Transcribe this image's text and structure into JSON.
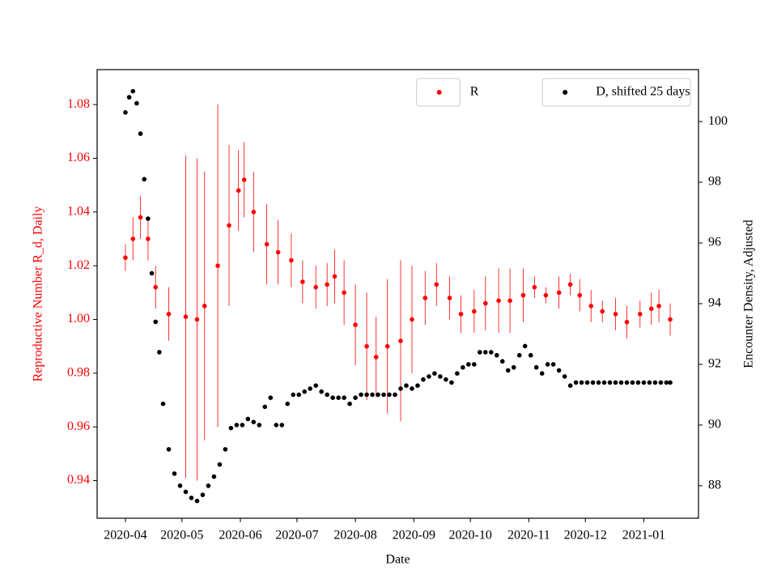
{
  "chart_data": {
    "type": "scatter",
    "x_label": "Date",
    "y_label": "Reproductive Number R_d, Daily",
    "y2_label": "Encounter Density, Adjusted",
    "y_color": "red",
    "xlim": [
      "2020-03-17",
      "2021-01-30"
    ],
    "xticks": [
      {
        "value": "2020-04-01",
        "label": "2020-04"
      },
      {
        "value": "2020-05-01",
        "label": "2020-05"
      },
      {
        "value": "2020-06-01",
        "label": "2020-06"
      },
      {
        "value": "2020-07-01",
        "label": "2020-07"
      },
      {
        "value": "2020-08-01",
        "label": "2020-08"
      },
      {
        "value": "2020-09-01",
        "label": "2020-09"
      },
      {
        "value": "2020-10-01",
        "label": "2020-10"
      },
      {
        "value": "2020-11-01",
        "label": "2020-11"
      },
      {
        "value": "2020-12-01",
        "label": "2020-12"
      },
      {
        "value": "2021-01-01",
        "label": "2021-01"
      }
    ],
    "ylim": [
      0.926,
      1.093
    ],
    "yticks": [
      0.94,
      0.96,
      0.98,
      {
        "value": 1,
        "label": "1.00"
      },
      1.02,
      1.04,
      1.06,
      1.08
    ],
    "y2lim": [
      86.93,
      101.71
    ],
    "y2ticks": [
      88,
      90,
      92,
      94,
      96,
      98,
      100
    ],
    "series": [
      {
        "name": "R",
        "color": "red",
        "legend": "upper center",
        "x": [
          "2020-04-01",
          "2020-04-05",
          "2020-04-09",
          "2020-04-13",
          "2020-04-17",
          "2020-04-24",
          "2020-05-03",
          "2020-05-09",
          "2020-05-13",
          "2020-05-20",
          "2020-05-26",
          "2020-05-31",
          "2020-06-03",
          "2020-06-08",
          "2020-06-15",
          "2020-06-21",
          "2020-06-28",
          "2020-07-04",
          "2020-07-11",
          "2020-07-17",
          "2020-07-21",
          "2020-07-26",
          "2020-08-01",
          "2020-08-07",
          "2020-08-12",
          "2020-08-18",
          "2020-08-25",
          "2020-08-31",
          "2020-09-07",
          "2020-09-13",
          "2020-09-20",
          "2020-09-26",
          "2020-10-03",
          "2020-10-09",
          "2020-10-16",
          "2020-10-22",
          "2020-10-29",
          "2020-11-04",
          "2020-11-10",
          "2020-11-17",
          "2020-11-23",
          "2020-11-28",
          "2020-12-04",
          "2020-12-10",
          "2020-12-17",
          "2020-12-23",
          "2020-12-30",
          "2021-01-05",
          "2021-01-09",
          "2021-01-15"
        ],
        "values": [
          1.023,
          1.03,
          1.038,
          1.03,
          1.012,
          1.002,
          1.001,
          1.0,
          1.005,
          1.02,
          1.035,
          1.048,
          1.052,
          1.04,
          1.028,
          1.025,
          1.022,
          1.014,
          1.012,
          1.013,
          1.016,
          1.01,
          0.998,
          0.99,
          0.986,
          0.99,
          0.992,
          1.0,
          1.008,
          1.013,
          1.008,
          1.002,
          1.003,
          1.006,
          1.007,
          1.007,
          1.009,
          1.012,
          1.009,
          1.01,
          1.013,
          1.009,
          1.005,
          1.003,
          1.002,
          0.999,
          1.002,
          1.004,
          1.005,
          1.0
        ],
        "errors": [
          0.005,
          0.008,
          0.008,
          0.008,
          0.008,
          0.01,
          0.06,
          0.06,
          0.05,
          0.06,
          0.03,
          0.015,
          0.014,
          0.015,
          0.015,
          0.012,
          0.01,
          0.008,
          0.008,
          0.008,
          0.01,
          0.012,
          0.015,
          0.02,
          0.015,
          0.025,
          0.03,
          0.02,
          0.01,
          0.008,
          0.008,
          0.007,
          0.008,
          0.01,
          0.012,
          0.012,
          0.01,
          0.004,
          0.003,
          0.006,
          0.004,
          0.006,
          0.006,
          0.004,
          0.006,
          0.006,
          0.005,
          0.006,
          0.006,
          0.006
        ]
      },
      {
        "name": "D, shifted 25 days",
        "color": "black",
        "axis": "y2",
        "legend": "upper right",
        "x": [
          "2020-04-01",
          "2020-04-03",
          "2020-04-05",
          "2020-04-07",
          "2020-04-09",
          "2020-04-11",
          "2020-04-13",
          "2020-04-15",
          "2020-04-17",
          "2020-04-19",
          "2020-04-21",
          "2020-04-24",
          "2020-04-27",
          "2020-04-30",
          "2020-05-03",
          "2020-05-06",
          "2020-05-09",
          "2020-05-12",
          "2020-05-15",
          "2020-05-18",
          "2020-05-21",
          "2020-05-24",
          "2020-05-27",
          "2020-05-30",
          "2020-06-02",
          "2020-06-05",
          "2020-06-08",
          "2020-06-11",
          "2020-06-14",
          "2020-06-17",
          "2020-06-20",
          "2020-06-23",
          "2020-06-26",
          "2020-06-29",
          "2020-07-02",
          "2020-07-05",
          "2020-07-08",
          "2020-07-11",
          "2020-07-14",
          "2020-07-17",
          "2020-07-20",
          "2020-07-23",
          "2020-07-26",
          "2020-07-29",
          "2020-08-01",
          "2020-08-04",
          "2020-08-07",
          "2020-08-10",
          "2020-08-13",
          "2020-08-16",
          "2020-08-19",
          "2020-08-22",
          "2020-08-25",
          "2020-08-28",
          "2020-08-31",
          "2020-09-03",
          "2020-09-06",
          "2020-09-09",
          "2020-09-12",
          "2020-09-15",
          "2020-09-18",
          "2020-09-21",
          "2020-09-24",
          "2020-09-27",
          "2020-09-30",
          "2020-10-03",
          "2020-10-06",
          "2020-10-09",
          "2020-10-12",
          "2020-10-15",
          "2020-10-18",
          "2020-10-21",
          "2020-10-24",
          "2020-10-27",
          "2020-10-30",
          "2020-11-02",
          "2020-11-05",
          "2020-11-08",
          "2020-11-11",
          "2020-11-14",
          "2020-11-17",
          "2020-11-20",
          "2020-11-23",
          "2020-11-26",
          "2020-11-29",
          "2020-12-02",
          "2020-12-05",
          "2020-12-08",
          "2020-12-11",
          "2020-12-14",
          "2020-12-17",
          "2020-12-20",
          "2020-12-23",
          "2020-12-26",
          "2020-12-29",
          "2021-01-01",
          "2021-01-04",
          "2021-01-07",
          "2021-01-10",
          "2021-01-13",
          "2021-01-15"
        ],
        "values": [
          100.3,
          100.8,
          101.0,
          100.6,
          99.6,
          98.1,
          96.8,
          95.0,
          93.4,
          92.4,
          90.7,
          89.2,
          88.4,
          88.0,
          87.8,
          87.6,
          87.5,
          87.7,
          88.0,
          88.3,
          88.7,
          89.2,
          89.9,
          90.0,
          90.0,
          90.2,
          90.1,
          90.0,
          90.6,
          90.9,
          90.0,
          90.0,
          90.7,
          91.0,
          91.0,
          91.1,
          91.2,
          91.3,
          91.1,
          91.0,
          90.9,
          90.9,
          90.9,
          90.7,
          90.9,
          91.0,
          91.0,
          91.0,
          91.0,
          91.0,
          91.0,
          91.0,
          91.2,
          91.3,
          91.2,
          91.3,
          91.5,
          91.6,
          91.7,
          91.6,
          91.5,
          91.4,
          91.7,
          91.9,
          92.0,
          92.0,
          92.4,
          92.4,
          92.4,
          92.3,
          92.1,
          91.8,
          91.9,
          92.3,
          92.6,
          92.3,
          91.9,
          91.7,
          92.0,
          92.0,
          91.8,
          91.6,
          91.3,
          91.4,
          91.4,
          91.4,
          91.4,
          91.4,
          91.4,
          91.4,
          91.4,
          91.4,
          91.4,
          91.4,
          91.4,
          91.4,
          91.4,
          91.4,
          91.4,
          91.4,
          91.4
        ]
      }
    ]
  }
}
